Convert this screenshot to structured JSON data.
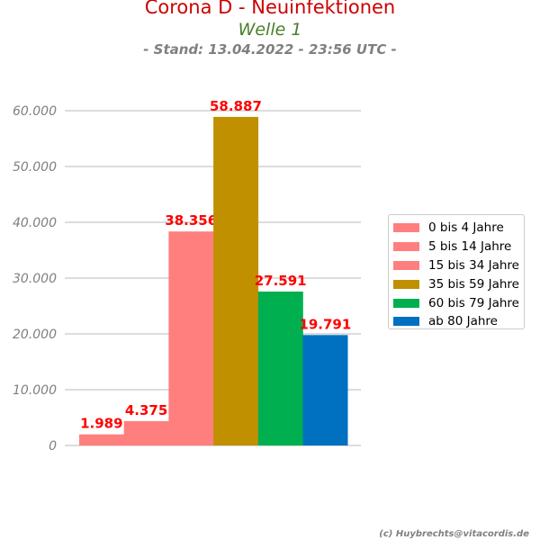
{
  "header": {
    "title": "Corona D - Neuinfektionen",
    "subtitle": "Welle 1",
    "stand": "- Stand: 13.04.2022 - 23:56 UTC -"
  },
  "credit": "(c) Huybrechts@vitacordis.de",
  "chart_data": {
    "type": "bar",
    "title": "Corona D - Neuinfektionen",
    "subtitle": "Welle 1",
    "xlabel": "",
    "ylabel": "",
    "ylim": [
      0,
      60000
    ],
    "yticks": [
      0,
      10000,
      20000,
      30000,
      40000,
      50000,
      60000
    ],
    "ytick_labels": [
      "0",
      "10.000",
      "20.000",
      "30.000",
      "40.000",
      "50.000",
      "60.000"
    ],
    "grid": true,
    "legend_position": "right",
    "series": [
      {
        "name": "0 bis 4 Jahre",
        "value": 1989,
        "label": "1.989",
        "color": "#ff7f7f"
      },
      {
        "name": "5 bis 14 Jahre",
        "value": 4375,
        "label": "4.375",
        "color": "#ff7f7f"
      },
      {
        "name": "15 bis 34 Jahre",
        "value": 38356,
        "label": "38.356",
        "color": "#ff7f7f"
      },
      {
        "name": "35 bis 59 Jahre",
        "value": 58887,
        "label": "58.887",
        "color": "#c09000"
      },
      {
        "name": "60 bis 79 Jahre",
        "value": 27591,
        "label": "27.591",
        "color": "#00b050"
      },
      {
        "name": "ab 80 Jahre",
        "value": 19791,
        "label": "19.791",
        "color": "#0070c0"
      }
    ]
  }
}
